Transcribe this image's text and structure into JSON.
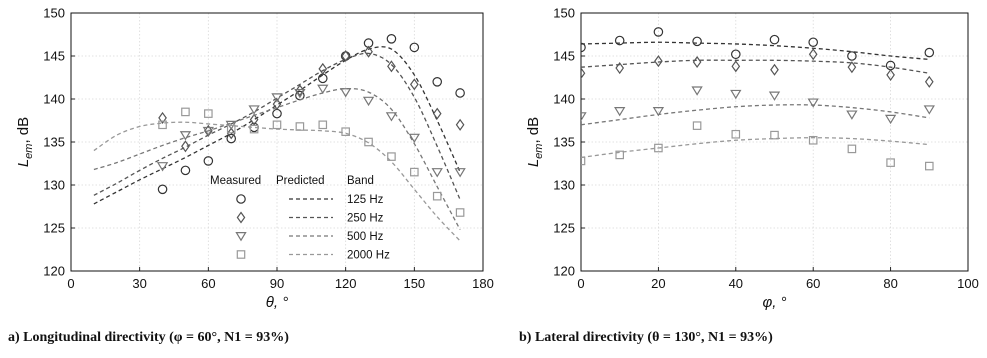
{
  "chart_data": [
    {
      "type": "scatter",
      "caption": "a) Longitudinal directivity (φ = 60°, N1 = 93%)",
      "xlabel": "θ, °",
      "ylabel": "L_em, dB",
      "xlim": [
        0,
        180
      ],
      "ylim": [
        120,
        150
      ],
      "xticks": [
        0,
        30,
        60,
        90,
        120,
        150,
        180
      ],
      "yticks": [
        120,
        125,
        130,
        135,
        140,
        145,
        150
      ],
      "grid": true,
      "legend": {
        "placement": "lower-center",
        "headers": [
          "Measured",
          "Predicted",
          "Band"
        ]
      },
      "series": [
        {
          "name": "125 Hz",
          "marker": "circle",
          "color": "#333333",
          "measured": {
            "x": [
              40,
              50,
              60,
              70,
              80,
              90,
              100,
              110,
              120,
              130,
              140,
              150,
              160,
              170
            ],
            "y": [
              129.5,
              131.7,
              132.8,
              135.4,
              136.7,
              138.3,
              140.4,
              142.4,
              145.0,
              146.5,
              147.0,
              146.0,
              142.0,
              140.7
            ]
          },
          "predicted": {
            "x": [
              10,
              20,
              30,
              40,
              50,
              60,
              70,
              80,
              90,
              100,
              110,
              120,
              130,
              140,
              150,
              160,
              170
            ],
            "y": [
              127.8,
              129.2,
              130.6,
              131.9,
              133.2,
              134.6,
              136.0,
              137.6,
              139.3,
              141.0,
              142.8,
              144.5,
              145.8,
              145.8,
              142.8,
              137.5,
              131.5
            ]
          }
        },
        {
          "name": "250 Hz",
          "marker": "diamond",
          "color": "#555555",
          "measured": {
            "x": [
              40,
              50,
              60,
              70,
              80,
              90,
              100,
              110,
              120,
              130,
              140,
              150,
              160,
              170
            ],
            "y": [
              137.8,
              134.5,
              136.3,
              136.0,
              137.6,
              139.4,
              141.0,
              143.5,
              145.0,
              145.5,
              143.8,
              141.7,
              138.3,
              137.0
            ]
          },
          "predicted": {
            "x": [
              10,
              20,
              30,
              40,
              50,
              60,
              70,
              80,
              90,
              100,
              110,
              120,
              130,
              140,
              150,
              160,
              170
            ],
            "y": [
              128.8,
              130.2,
              131.7,
              133.1,
              134.4,
              135.8,
              137.1,
              138.5,
              140.1,
              141.7,
              143.3,
              144.6,
              145.3,
              144.0,
              140.2,
              134.5,
              128.3
            ]
          }
        },
        {
          "name": "500 Hz",
          "marker": "triangle-down",
          "color": "#777777",
          "measured": {
            "x": [
              40,
              50,
              60,
              70,
              80,
              90,
              100,
              110,
              120,
              130,
              140,
              150,
              160,
              170
            ],
            "y": [
              132.2,
              135.8,
              136.3,
              137.0,
              138.8,
              140.2,
              140.7,
              141.2,
              140.8,
              139.8,
              138.0,
              135.5,
              131.5,
              131.5
            ]
          },
          "predicted": {
            "x": [
              10,
              20,
              30,
              40,
              50,
              60,
              70,
              80,
              90,
              100,
              110,
              120,
              130,
              140,
              150,
              160,
              170
            ],
            "y": [
              131.8,
              132.6,
              133.6,
              134.6,
              135.5,
              136.3,
              137.2,
              138.1,
              139.0,
              139.9,
              140.7,
              141.2,
              140.8,
              138.8,
              134.8,
              129.8,
              124.8
            ]
          }
        },
        {
          "name": "2000 Hz",
          "marker": "square",
          "color": "#999999",
          "measured": {
            "x": [
              40,
              50,
              60,
              70,
              80,
              90,
              100,
              110,
              120,
              130,
              140,
              150,
              160,
              170
            ],
            "y": [
              137.0,
              138.5,
              138.3,
              136.5,
              136.5,
              137.0,
              136.8,
              137.0,
              136.2,
              135.0,
              133.3,
              131.5,
              128.7,
              126.8
            ]
          },
          "predicted": {
            "x": [
              10,
              20,
              30,
              40,
              50,
              60,
              70,
              80,
              90,
              100,
              110,
              120,
              130,
              140,
              150,
              160,
              170
            ],
            "y": [
              134.0,
              135.8,
              136.8,
              137.2,
              137.3,
              137.1,
              136.9,
              136.7,
              136.5,
              136.4,
              136.3,
              136.0,
              134.9,
              132.7,
              129.5,
              126.3,
              123.5
            ]
          }
        }
      ]
    },
    {
      "type": "scatter",
      "caption": "b) Lateral directivity (θ = 130°, N1 = 93%)",
      "xlabel": "φ, °",
      "ylabel": "L_em, dB",
      "xlim": [
        0,
        100
      ],
      "ylim": [
        120,
        150
      ],
      "xticks": [
        0,
        20,
        40,
        60,
        80,
        100
      ],
      "yticks": [
        120,
        125,
        130,
        135,
        140,
        145,
        150
      ],
      "grid": true,
      "series": [
        {
          "name": "125 Hz",
          "marker": "circle",
          "color": "#333333",
          "measured": {
            "x": [
              0,
              10,
              20,
              30,
              40,
              50,
              60,
              70,
              80,
              90
            ],
            "y": [
              146.0,
              146.8,
              147.8,
              146.7,
              145.2,
              146.9,
              146.6,
              145.0,
              143.9,
              145.4
            ]
          },
          "predicted": {
            "x": [
              0,
              10,
              20,
              30,
              40,
              50,
              60,
              70,
              80,
              90
            ],
            "y": [
              146.4,
              146.5,
              146.6,
              146.5,
              146.4,
              146.2,
              145.9,
              145.5,
              145.0,
              144.6
            ]
          }
        },
        {
          "name": "250 Hz",
          "marker": "diamond",
          "color": "#555555",
          "measured": {
            "x": [
              0,
              10,
              20,
              30,
              40,
              50,
              60,
              70,
              80,
              90
            ],
            "y": [
              143.0,
              143.6,
              144.4,
              144.3,
              143.8,
              143.4,
              145.2,
              143.7,
              142.8,
              142.0
            ]
          },
          "predicted": {
            "x": [
              0,
              10,
              20,
              30,
              40,
              50,
              60,
              70,
              80,
              90
            ],
            "y": [
              143.7,
              144.0,
              144.3,
              144.5,
              144.5,
              144.5,
              144.4,
              144.2,
              143.7,
              143.0
            ]
          }
        },
        {
          "name": "500 Hz",
          "marker": "triangle-down",
          "color": "#777777",
          "measured": {
            "x": [
              0,
              10,
              20,
              30,
              40,
              50,
              60,
              70,
              80,
              90
            ],
            "y": [
              138.0,
              138.6,
              138.6,
              141.0,
              140.6,
              140.4,
              139.6,
              138.2,
              137.7,
              138.8
            ]
          },
          "predicted": {
            "x": [
              0,
              10,
              20,
              30,
              40,
              50,
              60,
              70,
              80,
              90
            ],
            "y": [
              137.0,
              137.6,
              138.2,
              138.7,
              139.1,
              139.3,
              139.3,
              139.0,
              138.5,
              137.8
            ]
          }
        },
        {
          "name": "2000 Hz",
          "marker": "square",
          "color": "#999999",
          "measured": {
            "x": [
              0,
              10,
              20,
              30,
              40,
              50,
              60,
              70,
              80,
              90
            ],
            "y": [
              132.8,
              133.5,
              134.3,
              136.9,
              135.9,
              135.8,
              135.2,
              134.2,
              132.6,
              132.2
            ]
          },
          "predicted": {
            "x": [
              0,
              10,
              20,
              30,
              40,
              50,
              60,
              70,
              80,
              90
            ],
            "y": [
              133.2,
              133.8,
              134.3,
              134.8,
              135.2,
              135.4,
              135.5,
              135.4,
              135.1,
              134.7
            ]
          }
        }
      ]
    }
  ]
}
